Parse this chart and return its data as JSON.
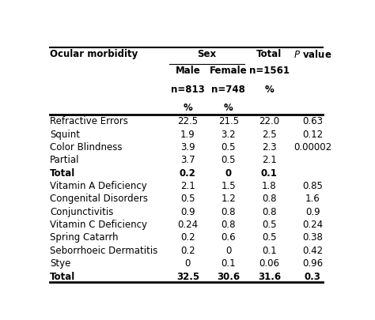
{
  "rows": [
    [
      "Refractive Errors",
      "22.5",
      "21.5",
      "22.0",
      "0.63"
    ],
    [
      "Squint",
      "1.9",
      "3.2",
      "2.5",
      "0.12"
    ],
    [
      "Color Blindness",
      "3.9",
      "0.5",
      "2.3",
      "0.00002"
    ],
    [
      "Partial",
      "3.7",
      "0.5",
      "2.1",
      ""
    ],
    [
      "Total",
      "0.2",
      "0",
      "0.1",
      ""
    ],
    [
      "Vitamin A Deficiency",
      "2.1",
      "1.5",
      "1.8",
      "0.85"
    ],
    [
      "Congenital Disorders",
      "0.5",
      "1.2",
      "0.8",
      "1.6"
    ],
    [
      "Conjunctivitis",
      "0.9",
      "0.8",
      "0.8",
      "0.9"
    ],
    [
      "Vitamin C Deficiency",
      "0.24",
      "0.8",
      "0.5",
      "0.24"
    ],
    [
      "Spring Catarrh",
      "0.2",
      "0.6",
      "0.5",
      "0.38"
    ],
    [
      "Seborrhoeic Dermatitis",
      "0.2",
      "0",
      "0.1",
      "0.42"
    ],
    [
      "Stye",
      "0",
      "0.1",
      "0.06",
      "0.96"
    ],
    [
      "Total",
      "32.5",
      "30.6",
      "31.6",
      "0.3"
    ]
  ],
  "bg_color": "#ffffff",
  "text_color": "#000000",
  "fs": 8.5
}
